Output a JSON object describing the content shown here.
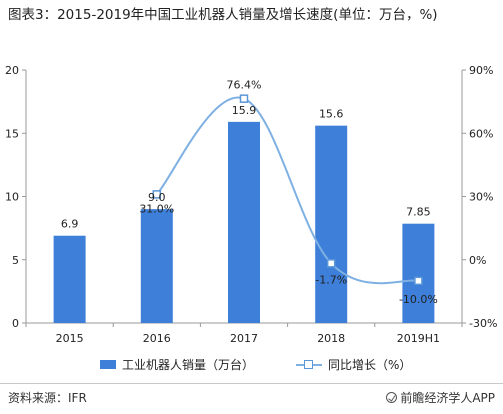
{
  "title": "图表3：2015-2019年中国工业机器人销量及增长速度(单位：万台，%)",
  "legend": {
    "bar": "工业机器人销量（万台）",
    "line": "同比增长（%）"
  },
  "footer": {
    "source": "资料来源：IFR",
    "brand": "前瞻经济学人APP"
  },
  "colors": {
    "bar": "#3d7fd9",
    "line": "#7fb0e3",
    "marker_border": "#5b97d8",
    "axis": "#999999",
    "text": "#222222"
  },
  "chart_data": {
    "type": "bar",
    "categories": [
      "2015",
      "2016",
      "2017",
      "2018",
      "2019H1"
    ],
    "series": [
      {
        "name": "工业机器人销量（万台）",
        "type": "bar",
        "axis": "left",
        "values": [
          6.9,
          9.0,
          15.9,
          15.6,
          7.85
        ],
        "labels": [
          "6.9",
          "9.0",
          "15.9",
          "15.6",
          "7.85"
        ]
      },
      {
        "name": "同比增长（%）",
        "type": "line",
        "axis": "right",
        "values": [
          null,
          31.0,
          76.4,
          -1.7,
          -10.0
        ],
        "labels": [
          "",
          "31.0%",
          "76.4%",
          "-1.7%",
          "-10.0%"
        ]
      }
    ],
    "left_axis": {
      "ylim": [
        0,
        20
      ],
      "ticks": [
        0,
        5,
        10,
        15,
        20
      ],
      "tick_labels": [
        "0",
        "5",
        "10",
        "15",
        "20"
      ]
    },
    "right_axis": {
      "ylim": [
        -30,
        90
      ],
      "ticks": [
        -30,
        0,
        30,
        60,
        90
      ],
      "tick_labels": [
        "-30%",
        "0%",
        "30%",
        "60%",
        "90%"
      ]
    },
    "grid": false,
    "legend_position": "bottom"
  }
}
